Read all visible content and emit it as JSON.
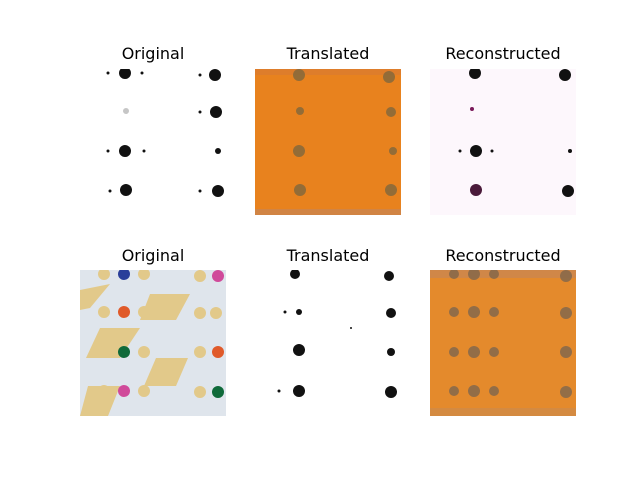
{
  "figure": {
    "rows": [
      {
        "panels": [
          {
            "title": "Original",
            "background": "#ffffff",
            "motif_color": "#111111",
            "tone": "white-dark-motifs"
          },
          {
            "title": "Translated",
            "background": "#e8821e",
            "motif_color": "#8a6a3a",
            "tone": "orange"
          },
          {
            "title": "Reconstructed",
            "background": "#fdf7fc",
            "motif_color": "#111111",
            "tone": "white-dark-motifs"
          }
        ]
      },
      {
        "panels": [
          {
            "title": "Original",
            "background": "#dfe5ec",
            "motif_color": "#e2c98a",
            "tone": "fabric-colored"
          },
          {
            "title": "Translated",
            "background": "#ffffff",
            "motif_color": "#111111",
            "tone": "white-dark-motifs"
          },
          {
            "title": "Reconstructed",
            "background": "#e48a2c",
            "motif_color": "#8a6a4a",
            "tone": "orange"
          }
        ]
      }
    ]
  }
}
